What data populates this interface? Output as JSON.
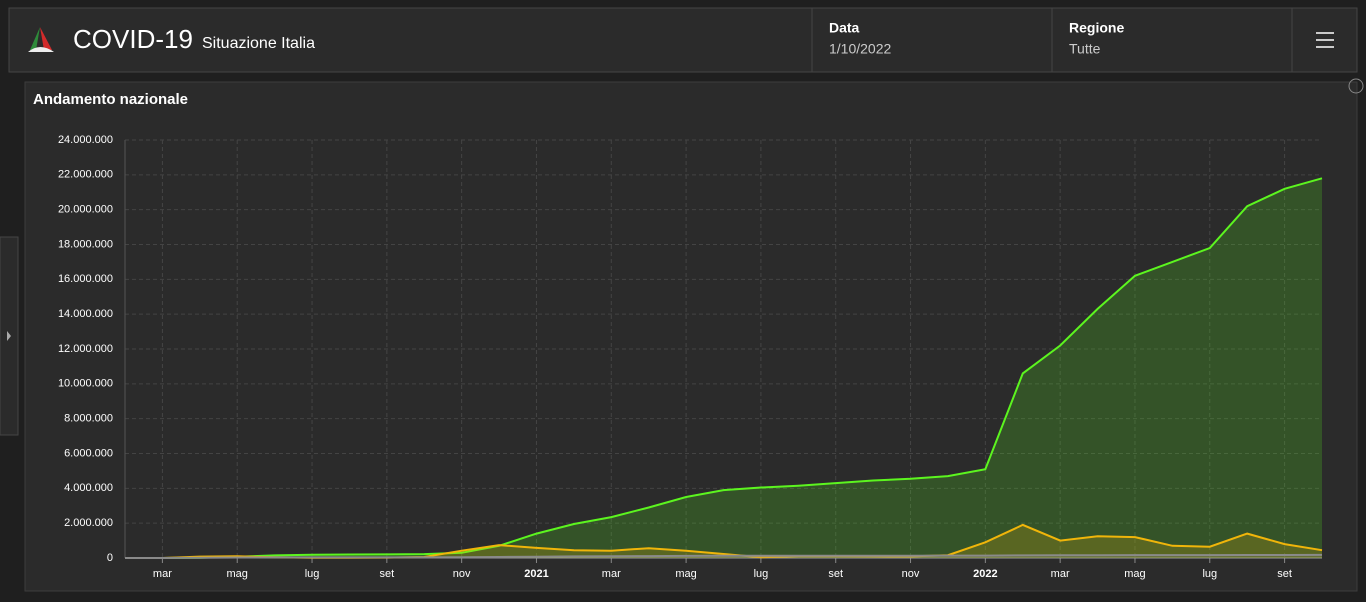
{
  "header": {
    "title": "COVID-19",
    "subtitle": "Situazione Italia",
    "date_label": "Data",
    "date_value": "1/10/2022",
    "region_label": "Regione",
    "region_value": "Tutte"
  },
  "chart_data": {
    "type": "line",
    "title": "Andamento nazionale",
    "categories": [
      null,
      "mar",
      null,
      "mag",
      null,
      "lug",
      null,
      "set",
      null,
      "nov",
      null,
      "2021",
      null,
      "mar",
      null,
      "mag",
      null,
      "lug",
      null,
      "set",
      null,
      "nov",
      null,
      "2022",
      null,
      "mar",
      null,
      "mag",
      null,
      "lug",
      null,
      "set",
      null
    ],
    "series": [
      {
        "color": "#5cf51f",
        "values": [
          0,
          0,
          16000,
          75000,
          150000,
          190000,
          200000,
          208000,
          225000,
          300000,
          700000,
          1400000,
          1950000,
          2350000,
          2900000,
          3500000,
          3900000,
          4050000,
          4150000,
          4300000,
          4450000,
          4550000,
          4700000,
          5100000,
          10600000,
          12200000,
          14300000,
          16200000,
          17000000,
          17800000,
          20200000,
          21200000,
          21800000
        ]
      },
      {
        "color": "#f0b50a",
        "values": [
          0,
          1000,
          80000,
          100000,
          40000,
          15000,
          12000,
          25000,
          60000,
          420000,
          740000,
          580000,
          440000,
          420000,
          560000,
          420000,
          230000,
          40000,
          110000,
          110000,
          100000,
          90000,
          160000,
          900000,
          1900000,
          1000000,
          1250000,
          1200000,
          700000,
          650000,
          1400000,
          800000,
          450000
        ]
      },
      {
        "color": "#8a8a8a",
        "values": [
          0,
          0,
          12000,
          28000,
          33000,
          35000,
          35000,
          35500,
          36000,
          39000,
          55000,
          74000,
          89000,
          98000,
          110000,
          121000,
          126000,
          127000,
          128000,
          130000,
          131000,
          132000,
          136000,
          138000,
          148000,
          155000,
          160000,
          164000,
          167000,
          168000,
          172000,
          175000,
          176000
        ]
      }
    ],
    "ylim": [
      0,
      24000000
    ],
    "yticks": [
      0,
      {
        "value": 2000000,
        "label": "2.000.000"
      },
      {
        "value": 4000000,
        "label": "4.000.000"
      },
      {
        "value": 6000000,
        "label": "6.000.000"
      },
      {
        "value": 8000000,
        "label": "8.000.000"
      },
      {
        "value": 10000000,
        "label": "10.000.000"
      },
      {
        "value": 12000000,
        "label": "12.000.000"
      },
      {
        "value": 14000000,
        "label": "14.000.000"
      },
      {
        "value": 16000000,
        "label": "16.000.000"
      },
      {
        "value": 18000000,
        "label": "18.000.000"
      },
      {
        "value": 20000000,
        "label": "20.000.000"
      },
      {
        "value": 22000000,
        "label": "22.000.000"
      },
      {
        "value": 24000000,
        "label": "24.000.000"
      }
    ],
    "grid": true,
    "area": true
  }
}
